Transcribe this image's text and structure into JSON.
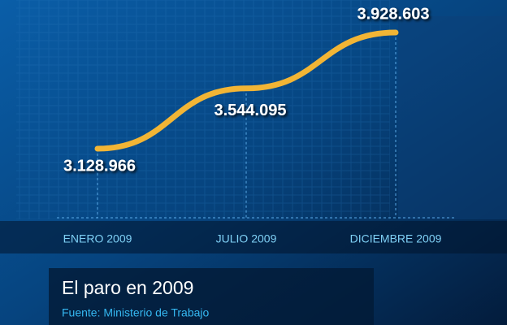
{
  "chart_data": {
    "type": "line",
    "title": "El paro en 2009",
    "subtitle": "Fuente: Ministerio de Trabajo",
    "categories": [
      "ENERO 2009",
      "JULIO 2009",
      "DICIEMBRE 2009"
    ],
    "values": [
      3128966,
      3544095,
      3928603
    ],
    "value_labels": [
      "3.128.966",
      "3.544.095",
      "3.928.603"
    ],
    "color": "#f2b535"
  }
}
